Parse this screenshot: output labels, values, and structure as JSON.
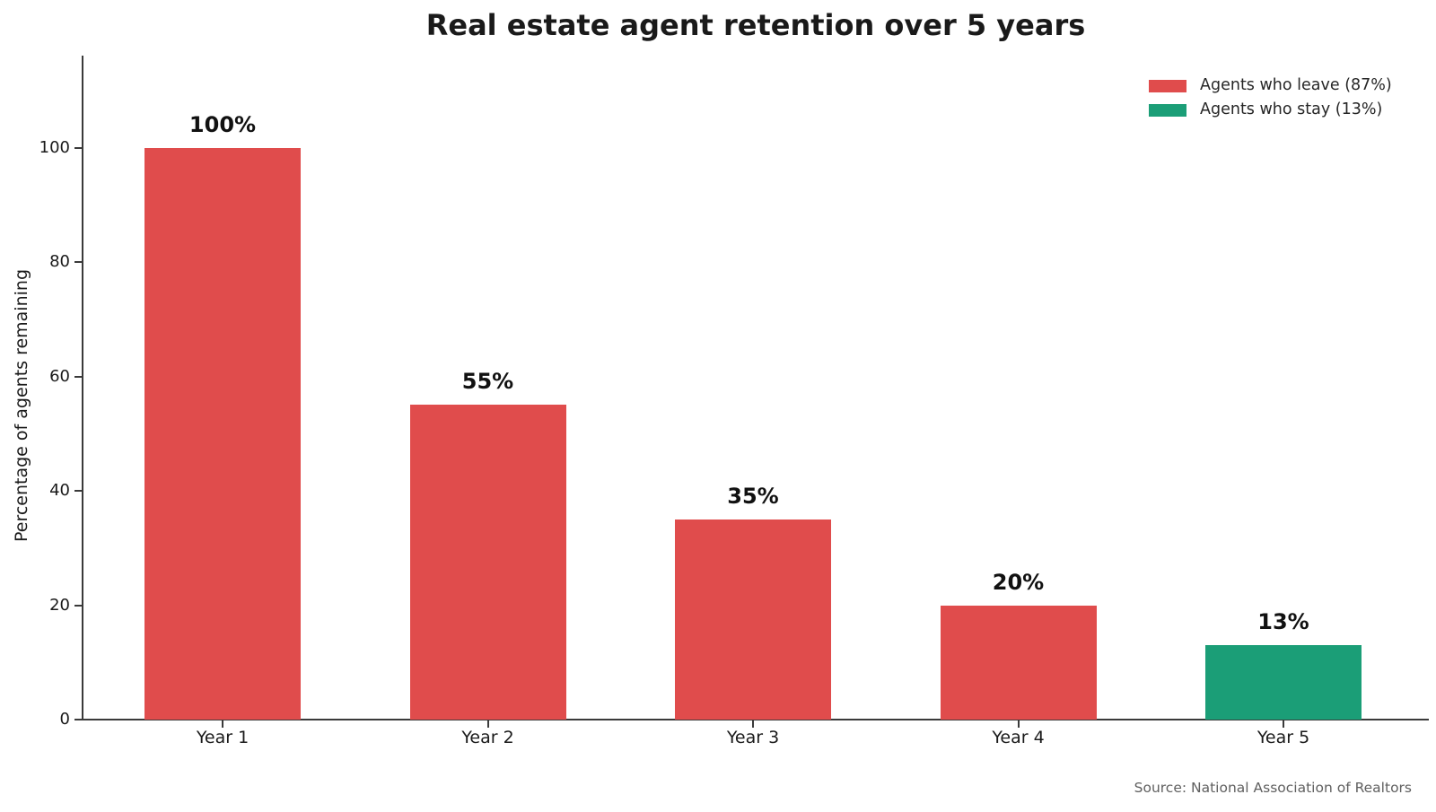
{
  "title": "Real estate agent retention over 5 years",
  "source_note": "Source: National Association of Realtors",
  "chart_data": {
    "type": "bar",
    "title": "Real estate agent retention over 5 years",
    "categories": [
      "Year 1",
      "Year 2",
      "Year 3",
      "Year 4",
      "Year 5"
    ],
    "values": [
      100,
      55,
      35,
      20,
      13
    ],
    "bar_labels": [
      "100%",
      "55%",
      "35%",
      "20%",
      "13%"
    ],
    "bar_colors": [
      "#e04c4c",
      "#e04c4c",
      "#e04c4c",
      "#e04c4c",
      "#1b9e77"
    ],
    "xlabel": "",
    "ylabel": "Percentage of agents remaining",
    "ylim": [
      0,
      116
    ],
    "yticks": [
      0,
      20,
      40,
      60,
      80,
      100
    ],
    "grid": false,
    "legend": {
      "position": "upper right",
      "frame": false,
      "entries": [
        {
          "label": "Agents who leave (87%)",
          "color": "#e04c4c"
        },
        {
          "label": "Agents who stay (13%)",
          "color": "#1b9e77"
        }
      ]
    },
    "annotation": "Source: National Association of Realtors"
  },
  "colors": {
    "leave_red": "#e04c4c",
    "stay_green": "#1b9e77",
    "axis": "#3a3a3a",
    "source_text": "#606060"
  }
}
